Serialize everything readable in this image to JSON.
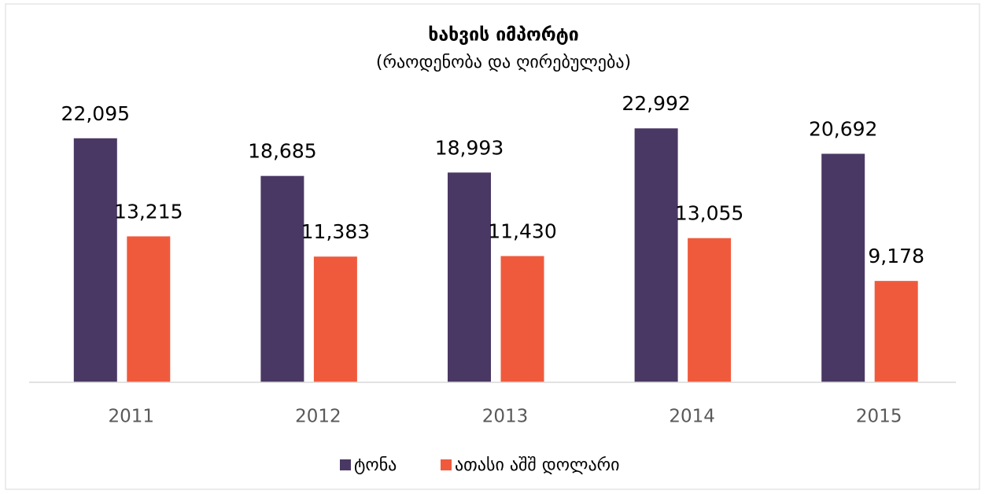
{
  "chart_data": {
    "type": "bar",
    "title": "ხახვის იმპორტი",
    "subtitle": "(რაოდენობა და ღირებულება)",
    "categories": [
      "2011",
      "2012",
      "2013",
      "2014",
      "2015"
    ],
    "series": [
      {
        "name": "ტონა",
        "color": "#4a3864",
        "values": [
          22095,
          18685,
          18993,
          22992,
          20692
        ],
        "value_labels": [
          "22,095",
          "18,685",
          "18,993",
          "22,992",
          "20,692"
        ]
      },
      {
        "name": "ათასი აშშ დოლარი",
        "color": "#f05a3c",
        "values": [
          13215,
          11383,
          11430,
          13055,
          9178
        ],
        "value_labels": [
          "13,215",
          "11,383",
          "11,430",
          "13,055",
          "9,178"
        ]
      }
    ],
    "ylim": [
      0,
      25000
    ],
    "legend": "bottom"
  }
}
